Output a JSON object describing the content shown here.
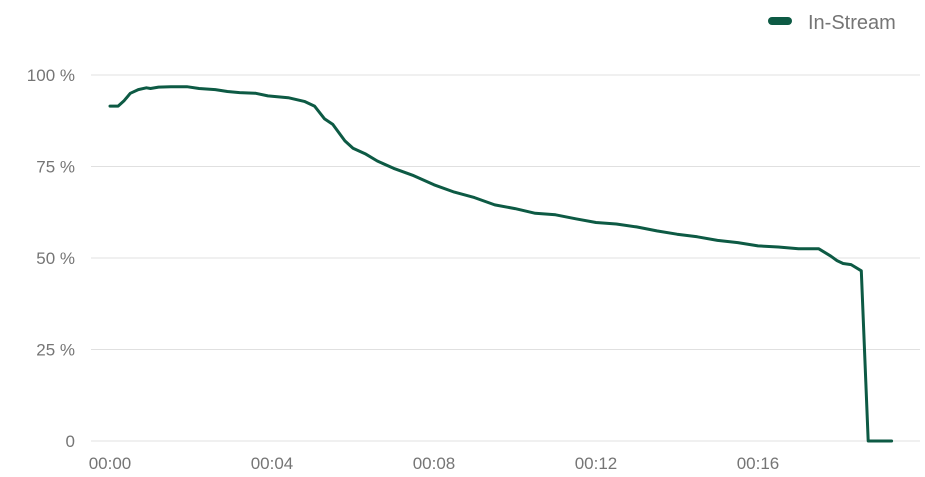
{
  "colors": {
    "series": "#0d5a44",
    "grid": "#e0e0e0",
    "text": "#757575",
    "background": "#ffffff"
  },
  "legend": {
    "icon": "legend-dash-icon",
    "label": "In-Stream"
  },
  "chart_data": {
    "type": "line",
    "xlabel": "",
    "ylabel": "",
    "x_unit": "seconds (mm:ss)",
    "xlim": [
      0,
      19.5
    ],
    "ylim": [
      0,
      100
    ],
    "x_ticks": [
      0,
      4,
      8,
      12,
      16
    ],
    "x_tick_labels": [
      "00:00",
      "00:04",
      "00:08",
      "00:12",
      "00:16"
    ],
    "y_ticks": [
      0,
      25,
      50,
      75,
      100
    ],
    "y_tick_labels": [
      "0",
      "25 %",
      "50 %",
      "75 %",
      "100 %"
    ],
    "grid": true,
    "legend_position": "top-right",
    "series": [
      {
        "name": "In-Stream",
        "color": "#0d5a44",
        "x": [
          0,
          0.2,
          0.35,
          0.5,
          0.7,
          0.9,
          1.0,
          1.2,
          1.5,
          1.9,
          2.2,
          2.6,
          2.9,
          3.2,
          3.6,
          3.9,
          4.4,
          4.8,
          5.05,
          5.3,
          5.5,
          5.8,
          6.0,
          6.3,
          6.6,
          7.0,
          7.5,
          8.0,
          8.5,
          9.0,
          9.5,
          10.0,
          10.5,
          11.0,
          11.5,
          12.0,
          12.5,
          13.0,
          13.5,
          14.0,
          14.5,
          15.0,
          15.5,
          16.0,
          16.5,
          17.0,
          17.5,
          17.8,
          17.95,
          18.1,
          18.3,
          18.55,
          18.72,
          18.92,
          19.3
        ],
        "values": [
          91.5,
          91.5,
          93,
          95,
          96,
          96.5,
          96.3,
          96.7,
          96.8,
          96.8,
          96.3,
          96,
          95.5,
          95.2,
          95,
          94.3,
          93.8,
          92.8,
          91.5,
          88,
          86.5,
          82,
          80,
          78.5,
          76.5,
          74.5,
          72.5,
          70,
          68,
          66.5,
          64.5,
          63.5,
          62.2,
          61.8,
          60.7,
          59.7,
          59.3,
          58.5,
          57.4,
          56.5,
          55.8,
          54.8,
          54.2,
          53.3,
          53,
          52.5,
          52.5,
          50.5,
          49.3,
          48.5,
          48.2,
          46.5,
          0,
          0,
          0
        ]
      }
    ]
  }
}
